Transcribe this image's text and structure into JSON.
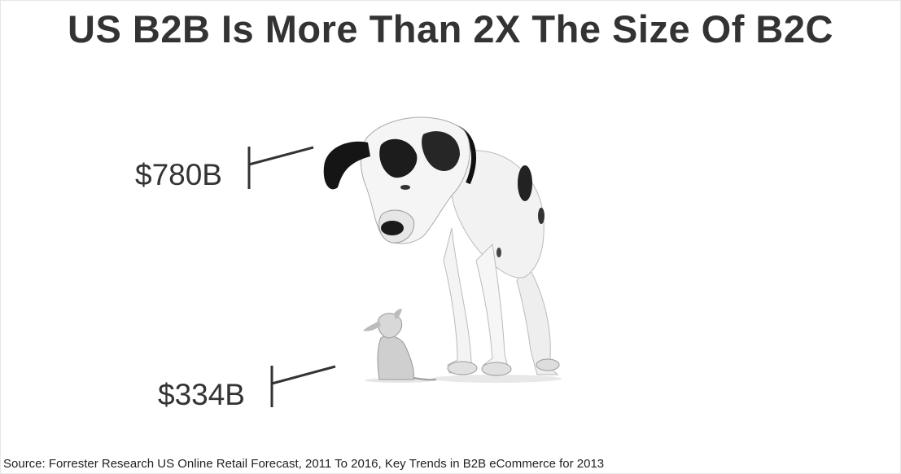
{
  "slide": {
    "title": "US B2B Is More Than 2X The Size Of B2C",
    "b2b_value": "$780B",
    "b2c_value": "$334B",
    "source": "Source: Forrester Research US Online Retail Forecast, 2011 To 2016, Key Trends in B2B eCommerce for 2013"
  },
  "colors": {
    "text": "#333333",
    "background": "#ffffff"
  }
}
